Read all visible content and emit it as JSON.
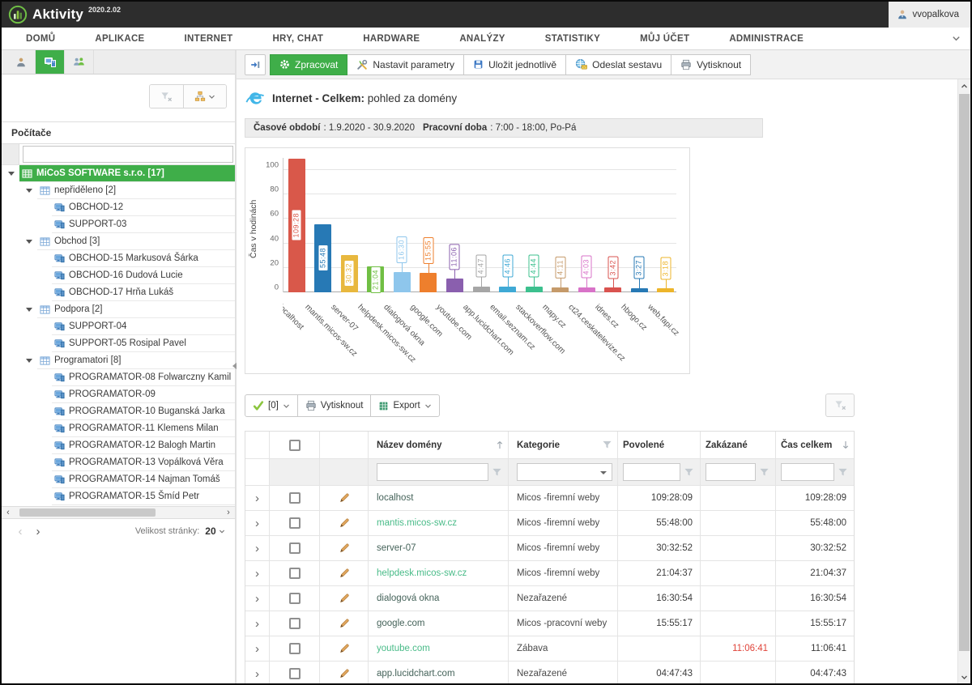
{
  "app": {
    "name": "Aktivity",
    "version": "2020.2.02",
    "user": "vvopalkova"
  },
  "menu": {
    "items": [
      "DOMŮ",
      "APLIKACE",
      "INTERNET",
      "HRY, CHAT",
      "HARDWARE",
      "ANALÝZY",
      "STATISTIKY",
      "MŮJ ÚČET",
      "ADMINISTRACE"
    ]
  },
  "sidebar": {
    "tabs": [
      {
        "icon": "user"
      },
      {
        "icon": "computers",
        "active": true
      },
      {
        "icon": "groups"
      }
    ],
    "panel_title": "Počítače",
    "search_value": "",
    "tree": [
      {
        "label": "MiCoS SOFTWARE s.r.o. [17]",
        "level": 0,
        "type": "group",
        "expanded": true,
        "selected": true
      },
      {
        "label": "nepřiděleno [2]",
        "level": 1,
        "type": "group",
        "expanded": true
      },
      {
        "label": "OBCHOD-12",
        "level": 2,
        "type": "pc"
      },
      {
        "label": "SUPPORT-03",
        "level": 2,
        "type": "pc"
      },
      {
        "label": "Obchod [3]",
        "level": 1,
        "type": "group",
        "expanded": true
      },
      {
        "label": "OBCHOD-15 Markusová Šárka",
        "level": 2,
        "type": "pc"
      },
      {
        "label": "OBCHOD-16 Dudová Lucie",
        "level": 2,
        "type": "pc"
      },
      {
        "label": "OBCHOD-17 Hrňa Lukáš",
        "level": 2,
        "type": "pc"
      },
      {
        "label": "Podpora [2]",
        "level": 1,
        "type": "group",
        "expanded": true
      },
      {
        "label": "SUPPORT-04",
        "level": 2,
        "type": "pc"
      },
      {
        "label": "SUPPORT-05 Rosipal Pavel",
        "level": 2,
        "type": "pc"
      },
      {
        "label": "Programatori [8]",
        "level": 1,
        "type": "group",
        "expanded": true
      },
      {
        "label": "PROGRAMATOR-08 Folwarczny Kamil",
        "level": 2,
        "type": "pc"
      },
      {
        "label": "PROGRAMATOR-09",
        "level": 2,
        "type": "pc"
      },
      {
        "label": "PROGRAMATOR-10 Buganská Jarka",
        "level": 2,
        "type": "pc"
      },
      {
        "label": "PROGRAMATOR-11 Klemens Milan",
        "level": 2,
        "type": "pc"
      },
      {
        "label": "PROGRAMATOR-12 Balogh Martin",
        "level": 2,
        "type": "pc"
      },
      {
        "label": "PROGRAMATOR-13 Vopálková Věra",
        "level": 2,
        "type": "pc"
      },
      {
        "label": "PROGRAMATOR-14 Najman Tomáš",
        "level": 2,
        "type": "pc"
      },
      {
        "label": "PROGRAMATOR-15 Šmíd Petr",
        "level": 2,
        "type": "pc"
      }
    ],
    "pagination": {
      "label": "Velikost stránky:",
      "page_size": "20"
    }
  },
  "toolbar": {
    "buttons": [
      {
        "label": "Zpracovat",
        "icon": "gear",
        "primary": true
      },
      {
        "label": "Nastavit parametry",
        "icon": "tools"
      },
      {
        "label": "Uložit jednotlivě",
        "icon": "save"
      },
      {
        "label": "Odeslat sestavu",
        "icon": "send"
      },
      {
        "label": "Vytisknout",
        "icon": "print"
      }
    ]
  },
  "report": {
    "title_bold": "Internet - Celkem:",
    "title_rest": " pohled za domény",
    "period_label": "Časové období",
    "period_value": ": 1.9.2020 - 30.9.2020",
    "worktime_label": "Pracovní doba",
    "worktime_value": ": 7:00 - 18:00, Po-Pá"
  },
  "chart_data": {
    "type": "bar",
    "title": "",
    "xlabel": "",
    "ylabel": "Čas v hodinách",
    "ylim": [
      0,
      110
    ],
    "yticks": [
      0,
      20,
      40,
      60,
      80,
      100
    ],
    "grid": true,
    "legend": false,
    "categories": [
      "localhost",
      "mantis.micos-sw.cz",
      "server-07",
      "helpdesk.micos-sw.cz",
      "dialogová okna",
      "google.com",
      "youtube.com",
      "app.lucidchart.com",
      "email.seznam.cz",
      "stackoverflow.com",
      "mapy.cz",
      "ct24.ceskatelevize.cz",
      "idnes.cz",
      "hbogo.cz",
      "web.fapi.cz"
    ],
    "values_hours": [
      109.47,
      55.8,
      30.55,
      21.08,
      16.52,
      15.92,
      11.11,
      4.8,
      4.77,
      4.74,
      4.19,
      4.05,
      3.7,
      3.45,
      3.3
    ],
    "bar_labels": [
      "109:28",
      "55:48",
      "30:32",
      "21:04",
      "16:30",
      "15:55",
      "11:06",
      "4:47",
      "4:46",
      "4:44",
      "4:11",
      "4:03",
      "3:42",
      "3:27",
      "3:18"
    ],
    "colors": [
      "#d9584a",
      "#2779b5",
      "#e8b83e",
      "#70bf44",
      "#8ec6ec",
      "#ee7f2d",
      "#8a5fae",
      "#a6a6a6",
      "#3fa9d5",
      "#3cc08e",
      "#c59a6a",
      "#d873c8",
      "#d9534f",
      "#2779b5",
      "#edb52b"
    ]
  },
  "grid_toolbar": {
    "check_label": "[0]",
    "print_label": "Vytisknout",
    "export_label": "Export"
  },
  "table": {
    "columns": [
      {
        "label": "Název domény",
        "sort": "asc",
        "filter": "text"
      },
      {
        "label": "Kategorie",
        "filter": "select",
        "funnel": true
      },
      {
        "label": "Povolené",
        "filter": "text"
      },
      {
        "label": "Zakázané",
        "filter": "text"
      },
      {
        "label": "Čas celkem",
        "sort": "desc",
        "filter": "text"
      }
    ],
    "rows": [
      {
        "name": "localhost",
        "link": false,
        "category": "Micos -firemní weby",
        "allowed": "109:28:09",
        "banned": "",
        "total": "109:28:09"
      },
      {
        "name": "mantis.micos-sw.cz",
        "link": true,
        "category": "Micos -firemní weby",
        "allowed": "55:48:00",
        "banned": "",
        "total": "55:48:00"
      },
      {
        "name": "server-07",
        "link": false,
        "category": "Micos -firemní weby",
        "allowed": "30:32:52",
        "banned": "",
        "total": "30:32:52"
      },
      {
        "name": "helpdesk.micos-sw.cz",
        "link": true,
        "category": "Micos -firemní weby",
        "allowed": "21:04:37",
        "banned": "",
        "total": "21:04:37"
      },
      {
        "name": "dialogová okna",
        "link": false,
        "category": "Nezařazené",
        "allowed": "16:30:54",
        "banned": "",
        "total": "16:30:54"
      },
      {
        "name": "google.com",
        "link": false,
        "category": "Micos -pracovní weby",
        "allowed": "15:55:17",
        "banned": "",
        "total": "15:55:17"
      },
      {
        "name": "youtube.com",
        "link": true,
        "category": "Zábava",
        "allowed": "",
        "banned": "11:06:41",
        "total": "11:06:41"
      },
      {
        "name": "app.lucidchart.com",
        "link": false,
        "category": "Nezařazené",
        "allowed": "04:47:43",
        "banned": "",
        "total": "04:47:43"
      }
    ]
  },
  "colors": {
    "accent_green": "#3fae49",
    "link_green": "#49bb88",
    "banned_red": "#e0443a"
  }
}
